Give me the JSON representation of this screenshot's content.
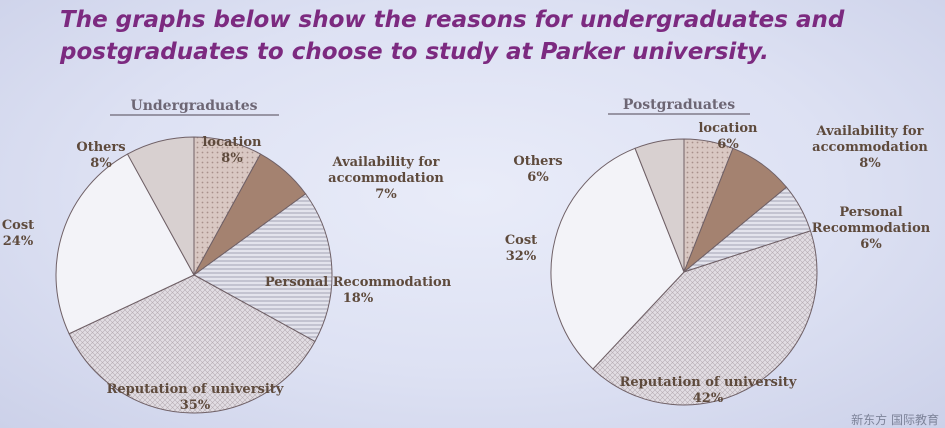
{
  "heading": {
    "line1": "The graphs below show the reasons for undergraduates and",
    "line2": "postgraduates to choose to study at Parker university."
  },
  "colors": {
    "heading": "#7c2a80",
    "label": "#5e4a3c"
  },
  "chart_data": [
    {
      "type": "pie",
      "title": "Undergraduates",
      "slices": [
        {
          "label": "location",
          "value": 8,
          "value_label": "8%",
          "fill": "dots"
        },
        {
          "label": "Availability for accommodation",
          "label_lines": [
            "Availability for",
            "accommodation"
          ],
          "value": 7,
          "value_label": "7%",
          "fill": "brown"
        },
        {
          "label": "Personal Recommodation",
          "label_lines": [
            "Personal Recommodation"
          ],
          "value": 18,
          "value_label": "18%",
          "fill": "hstripes"
        },
        {
          "label": "Reputation of university",
          "label_lines": [
            "Reputation of university"
          ],
          "value": 35,
          "value_label": "35%",
          "fill": "grid"
        },
        {
          "label": "Cost",
          "label_lines": [
            "Cost"
          ],
          "value": 24,
          "value_label": "24%",
          "fill": "plain"
        },
        {
          "label": "Others",
          "label_lines": [
            "Others"
          ],
          "value": 8,
          "value_label": "8%",
          "fill": "grey"
        }
      ]
    },
    {
      "type": "pie",
      "title": "Postgraduates",
      "slices": [
        {
          "label": "location",
          "value": 6,
          "value_label": "6%",
          "fill": "dots"
        },
        {
          "label": "Availability for accommodation",
          "label_lines": [
            "Availability for",
            "accommodation"
          ],
          "value": 8,
          "value_label": "8%",
          "fill": "brown"
        },
        {
          "label": "Personal Recommodation",
          "label_lines": [
            "Personal",
            "Recommodation"
          ],
          "value": 6,
          "value_label": "6%",
          "fill": "hstripes"
        },
        {
          "label": "Reputation of university",
          "label_lines": [
            "Reputation of university"
          ],
          "value": 42,
          "value_label": "42%",
          "fill": "grid"
        },
        {
          "label": "Cost",
          "label_lines": [
            "Cost"
          ],
          "value": 32,
          "value_label": "32%",
          "fill": "plain"
        },
        {
          "label": "Others",
          "label_lines": [
            "Others"
          ],
          "value": 6,
          "value_label": "6%",
          "fill": "grey"
        }
      ]
    }
  ],
  "watermark": "新东方 国际教育"
}
